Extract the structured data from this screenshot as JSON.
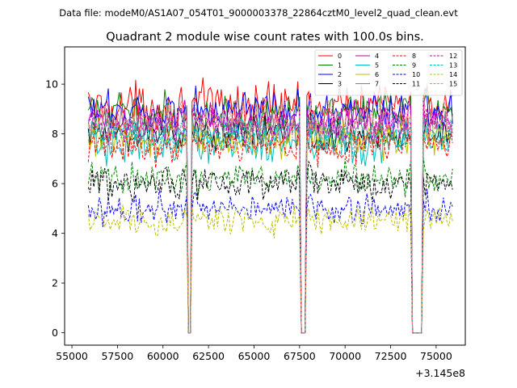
{
  "chart_data": {
    "type": "line",
    "file_label": "Data file: modeM0/AS1A07_054T01_9000003378_22864cztM0_level2_quad_clean.evt",
    "title": "Quadrant 2 module wise count rates with 100.0s bins.",
    "xlabel": "",
    "ylabel": "",
    "x_offset_label": "+3.145e8",
    "x_offset": 314500000,
    "xlim": [
      54600,
      76600
    ],
    "ylim": [
      -0.5,
      11.5
    ],
    "x_ticks": [
      55000,
      57500,
      60000,
      62500,
      65000,
      67500,
      70000,
      72500,
      75000
    ],
    "y_ticks": [
      0,
      2,
      4,
      6,
      8,
      10
    ],
    "x_start": 55900,
    "x_end": 75900,
    "bin_size": 100,
    "gaps": [
      [
        61300,
        61600
      ],
      [
        67500,
        67900
      ],
      [
        73600,
        74300
      ]
    ],
    "legend": {
      "location": "top-right",
      "columns": 4
    },
    "series": [
      {
        "name": "0",
        "color": "#ff0000",
        "style": "solid",
        "base": 9.1,
        "noise": 0.45
      },
      {
        "name": "1",
        "color": "#008000",
        "style": "solid",
        "base": 8.8,
        "noise": 0.4
      },
      {
        "name": "2",
        "color": "#0000ff",
        "style": "solid",
        "base": 8.9,
        "noise": 0.4
      },
      {
        "name": "3",
        "color": "#000000",
        "style": "solid",
        "base": 8.0,
        "noise": 0.35
      },
      {
        "name": "4",
        "color": "#bf00bf",
        "style": "solid",
        "base": 8.5,
        "noise": 0.35
      },
      {
        "name": "5",
        "color": "#00bfbf",
        "style": "solid",
        "base": 7.6,
        "noise": 0.4
      },
      {
        "name": "6",
        "color": "#bfbf00",
        "style": "solid",
        "base": 7.8,
        "noise": 0.35
      },
      {
        "name": "7",
        "color": "#808080",
        "style": "solid",
        "base": 8.2,
        "noise": 0.35
      },
      {
        "name": "8",
        "color": "#ff0000",
        "style": "dashed",
        "base": 7.5,
        "noise": 0.35
      },
      {
        "name": "9",
        "color": "#008000",
        "style": "dashed",
        "base": 6.2,
        "noise": 0.3
      },
      {
        "name": "10",
        "color": "#0000ff",
        "style": "dashed",
        "base": 5.0,
        "noise": 0.3
      },
      {
        "name": "11",
        "color": "#000000",
        "style": "dashed",
        "base": 6.0,
        "noise": 0.3
      },
      {
        "name": "12",
        "color": "#bf00bf",
        "style": "dashed",
        "base": 8.3,
        "noise": 0.35
      },
      {
        "name": "13",
        "color": "#00bfbf",
        "style": "dashed",
        "base": 8.0,
        "noise": 0.35
      },
      {
        "name": "14",
        "color": "#bfbf00",
        "style": "dashed",
        "base": 4.5,
        "noise": 0.3
      },
      {
        "name": "15",
        "color": "#ff7f7f",
        "style": "dashed",
        "base": 8.6,
        "noise": 0.4
      }
    ]
  }
}
